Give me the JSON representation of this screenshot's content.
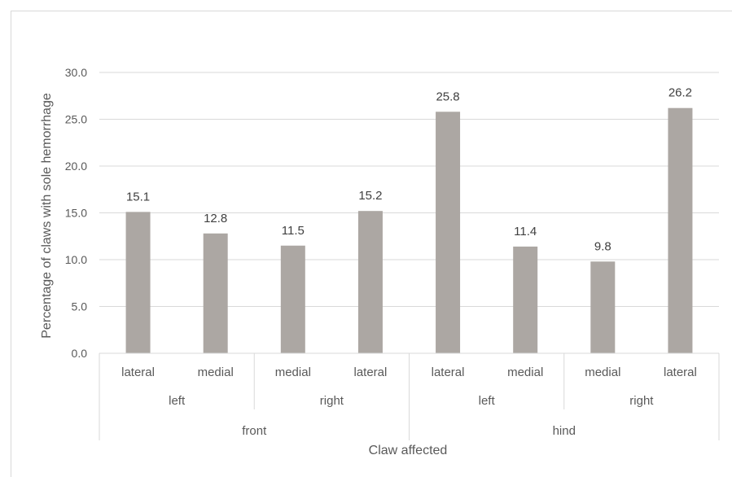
{
  "chart_data": {
    "type": "bar",
    "title": "",
    "ylabel": "Percentage of claws with sole hemorrhage",
    "xlabel": "Claw affected",
    "ylim": [
      0,
      30
    ],
    "yticks": [
      "0.0",
      "5.0",
      "10.0",
      "15.0",
      "20.0",
      "25.0",
      "30.0"
    ],
    "grid": true,
    "bar_color": "#aca7a3",
    "categories": [
      {
        "claw": "lateral",
        "side": "left",
        "limb": "front"
      },
      {
        "claw": "medial",
        "side": "left",
        "limb": "front"
      },
      {
        "claw": "medial",
        "side": "right",
        "limb": "front"
      },
      {
        "claw": "lateral",
        "side": "right",
        "limb": "front"
      },
      {
        "claw": "lateral",
        "side": "left",
        "limb": "hind"
      },
      {
        "claw": "medial",
        "side": "left",
        "limb": "hind"
      },
      {
        "claw": "medial",
        "side": "right",
        "limb": "hind"
      },
      {
        "claw": "lateral",
        "side": "right",
        "limb": "hind"
      }
    ],
    "values": [
      15.1,
      12.8,
      11.5,
      15.2,
      25.8,
      11.4,
      9.8,
      26.2
    ],
    "data_labels": [
      "15.1",
      "12.8",
      "11.5",
      "15.2",
      "25.8",
      "11.4",
      "9.8",
      "26.2"
    ],
    "side_groups": [
      "left",
      "right",
      "left",
      "right"
    ],
    "limb_groups": [
      "front",
      "hind"
    ]
  }
}
